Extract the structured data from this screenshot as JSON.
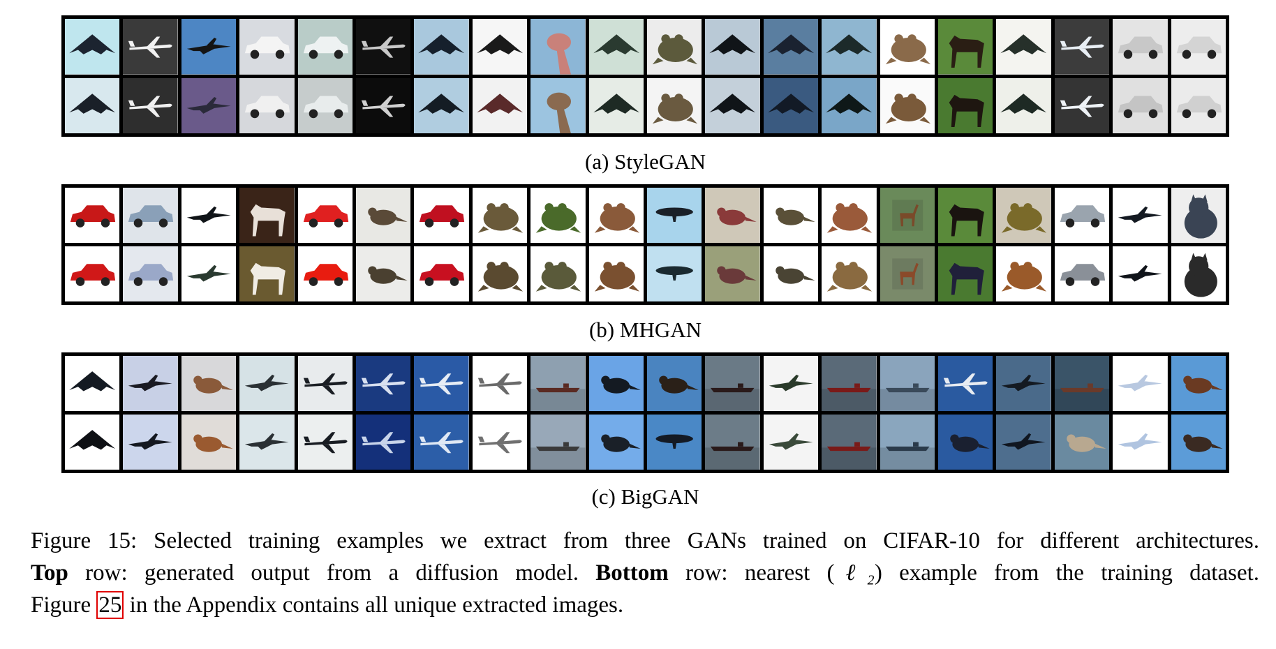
{
  "figure": {
    "panels": [
      {
        "id": "stylegan",
        "caption": "(a) StyleGAN",
        "top_row": [
          {
            "subject": "stealth-bomber",
            "bg": "#bfe6ee",
            "fg": "#1c2430"
          },
          {
            "subject": "airliner",
            "bg": "#3a3a3a",
            "fg": "#f2f2f2"
          },
          {
            "subject": "fighter-jet",
            "bg": "#4d86c4",
            "fg": "#151515"
          },
          {
            "subject": "car",
            "bg": "#d8dbe0",
            "fg": "#f4f4f4"
          },
          {
            "subject": "car",
            "bg": "#b9ccc8",
            "fg": "#eef2f2"
          },
          {
            "subject": "airliner",
            "bg": "#101010",
            "fg": "#c8c8c8"
          },
          {
            "subject": "stealth-bomber",
            "bg": "#a9c8dd",
            "fg": "#16202c"
          },
          {
            "subject": "stealth-bomber",
            "bg": "#f6f6f6",
            "fg": "#1a1a1a"
          },
          {
            "subject": "ostrich-head",
            "bg": "#8cb6d6",
            "fg": "#c9817a"
          },
          {
            "subject": "stealth-bomber",
            "bg": "#cfe0d6",
            "fg": "#2a3a30"
          },
          {
            "subject": "frog",
            "bg": "#ececec",
            "fg": "#5c5a3c"
          },
          {
            "subject": "stealth-bomber",
            "bg": "#b9c9d6",
            "fg": "#101418"
          },
          {
            "subject": "stealth-bomber",
            "bg": "#5a7ea0",
            "fg": "#1a2230"
          },
          {
            "subject": "stealth-bomber",
            "bg": "#8fb6d0",
            "fg": "#1c2a2a"
          },
          {
            "subject": "frog",
            "bg": "#ffffff",
            "fg": "#8a6a4a"
          },
          {
            "subject": "horse",
            "bg": "#5a8a3a",
            "fg": "#2a1e14"
          },
          {
            "subject": "stealth-bomber",
            "bg": "#f4f4f0",
            "fg": "#26302a"
          },
          {
            "subject": "airliner",
            "bg": "#3c3c3c",
            "fg": "#e8eef4"
          },
          {
            "subject": "car",
            "bg": "#e4e4e4",
            "fg": "#c8c8c8"
          },
          {
            "subject": "car",
            "bg": "#ededed",
            "fg": "#d4d4d4"
          }
        ],
        "bottom_row": [
          {
            "subject": "stealth-bomber",
            "bg": "#d8e8ee",
            "fg": "#1a2028"
          },
          {
            "subject": "airliner",
            "bg": "#2e2e2e",
            "fg": "#f0f0f0"
          },
          {
            "subject": "fighter-jet",
            "bg": "#6a5a8a",
            "fg": "#2a2a3a"
          },
          {
            "subject": "car",
            "bg": "#d6d8dc",
            "fg": "#f0f0f0"
          },
          {
            "subject": "car",
            "bg": "#c6cccc",
            "fg": "#e8ecec"
          },
          {
            "subject": "airliner",
            "bg": "#0c0c0c",
            "fg": "#d0d0d0"
          },
          {
            "subject": "stealth-bomber",
            "bg": "#b0cde0",
            "fg": "#141c24"
          },
          {
            "subject": "stealth-bomber",
            "bg": "#f2f2f2",
            "fg": "#5a2a2a"
          },
          {
            "subject": "ostrich-head",
            "bg": "#9cc4e0",
            "fg": "#8a6a50"
          },
          {
            "subject": "stealth-bomber",
            "bg": "#e6ece6",
            "fg": "#1e2a24"
          },
          {
            "subject": "frog",
            "bg": "#f4f4f4",
            "fg": "#6a5a40"
          },
          {
            "subject": "stealth-bomber",
            "bg": "#c4d0da",
            "fg": "#101418"
          },
          {
            "subject": "stealth-bomber",
            "bg": "#3a5a80",
            "fg": "#121a26"
          },
          {
            "subject": "stealth-bomber",
            "bg": "#7aa6c8",
            "fg": "#0e1818"
          },
          {
            "subject": "frog",
            "bg": "#fafafa",
            "fg": "#7a5a3a"
          },
          {
            "subject": "horse",
            "bg": "#4a7a30",
            "fg": "#1e1610"
          },
          {
            "subject": "stealth-bomber",
            "bg": "#eef0ea",
            "fg": "#1e2a24"
          },
          {
            "subject": "airliner",
            "bg": "#343434",
            "fg": "#eef2f6"
          },
          {
            "subject": "car",
            "bg": "#e0e0e0",
            "fg": "#c4c4c4"
          },
          {
            "subject": "car",
            "bg": "#ebebeb",
            "fg": "#d0d0d0"
          }
        ]
      },
      {
        "id": "mhgan",
        "caption": "(b) MHGAN",
        "top_row": [
          {
            "subject": "car",
            "bg": "#ffffff",
            "fg": "#c81818"
          },
          {
            "subject": "car",
            "bg": "#dfe4ea",
            "fg": "#8aa0b8"
          },
          {
            "subject": "fighter-jet",
            "bg": "#ffffff",
            "fg": "#101418"
          },
          {
            "subject": "horse",
            "bg": "#3a2418",
            "fg": "#e8e0d8"
          },
          {
            "subject": "car",
            "bg": "#ffffff",
            "fg": "#e02020"
          },
          {
            "subject": "bird",
            "bg": "#e8e8e4",
            "fg": "#5a4a38"
          },
          {
            "subject": "car",
            "bg": "#ffffff",
            "fg": "#c01020"
          },
          {
            "subject": "frog",
            "bg": "#ffffff",
            "fg": "#6a5a3a"
          },
          {
            "subject": "frog",
            "bg": "#ffffff",
            "fg": "#4a6a2a"
          },
          {
            "subject": "frog",
            "bg": "#ffffff",
            "fg": "#8a5a3a"
          },
          {
            "subject": "airship",
            "bg": "#a8d4ec",
            "fg": "#1a2028"
          },
          {
            "subject": "bird",
            "bg": "#cfc8b8",
            "fg": "#8a3a3a"
          },
          {
            "subject": "bird",
            "bg": "#ffffff",
            "fg": "#5a5038"
          },
          {
            "subject": "frog",
            "bg": "#ffffff",
            "fg": "#9a5a3a"
          },
          {
            "subject": "deer",
            "bg": "#6a8a5a",
            "fg": "#7a4a2a"
          },
          {
            "subject": "horse",
            "bg": "#5a8a3a",
            "fg": "#1a1410"
          },
          {
            "subject": "frog",
            "bg": "#cfc8b8",
            "fg": "#7a6a2a"
          },
          {
            "subject": "car",
            "bg": "#ffffff",
            "fg": "#9aa4ae"
          },
          {
            "subject": "fighter-jet",
            "bg": "#ffffff",
            "fg": "#141a22"
          },
          {
            "subject": "cat",
            "bg": "#eeeeee",
            "fg": "#3a4454"
          }
        ],
        "bottom_row": [
          {
            "subject": "car",
            "bg": "#ffffff",
            "fg": "#d01818"
          },
          {
            "subject": "car",
            "bg": "#e4e8ee",
            "fg": "#9aa8c8"
          },
          {
            "subject": "fighter-jet",
            "bg": "#ffffff",
            "fg": "#2a3a30"
          },
          {
            "subject": "horse",
            "bg": "#6a5a30",
            "fg": "#f0ece4"
          },
          {
            "subject": "car",
            "bg": "#ffffff",
            "fg": "#e81c10"
          },
          {
            "subject": "bird",
            "bg": "#ececea",
            "fg": "#4a4030"
          },
          {
            "subject": "car",
            "bg": "#ffffff",
            "fg": "#c81020"
          },
          {
            "subject": "frog",
            "bg": "#ffffff",
            "fg": "#5a4a30"
          },
          {
            "subject": "frog",
            "bg": "#ffffff",
            "fg": "#5a5a3a"
          },
          {
            "subject": "frog",
            "bg": "#ffffff",
            "fg": "#7a5030"
          },
          {
            "subject": "airship",
            "bg": "#c0e0f0",
            "fg": "#1a2a30"
          },
          {
            "subject": "bird",
            "bg": "#9aa07a",
            "fg": "#6a3a3a"
          },
          {
            "subject": "bird",
            "bg": "#ffffff",
            "fg": "#4a4434"
          },
          {
            "subject": "frog",
            "bg": "#ffffff",
            "fg": "#8a6a40"
          },
          {
            "subject": "deer",
            "bg": "#7a8a6a",
            "fg": "#8a4a2a"
          },
          {
            "subject": "horse",
            "bg": "#4a7a30",
            "fg": "#20203a"
          },
          {
            "subject": "frog",
            "bg": "#ffffff",
            "fg": "#9a5a2a"
          },
          {
            "subject": "car",
            "bg": "#ffffff",
            "fg": "#8a9098"
          },
          {
            "subject": "fighter-jet",
            "bg": "#ffffff",
            "fg": "#10141a"
          },
          {
            "subject": "cat",
            "bg": "#ffffff",
            "fg": "#2a2a2a"
          }
        ]
      },
      {
        "id": "biggan",
        "caption": "(c) BigGAN",
        "top_row": [
          {
            "subject": "stealth-bomber",
            "bg": "#ffffff",
            "fg": "#141a22"
          },
          {
            "subject": "fighter-jet",
            "bg": "#c8d0e6",
            "fg": "#1a1a22"
          },
          {
            "subject": "bird",
            "bg": "#d8d8da",
            "fg": "#8a5a3a"
          },
          {
            "subject": "fighter-jet",
            "bg": "#d6e2e6",
            "fg": "#2a3034"
          },
          {
            "subject": "airliner",
            "bg": "#e8ebed",
            "fg": "#1a1e24"
          },
          {
            "subject": "airliner",
            "bg": "#1a3a80",
            "fg": "#d8e0f0"
          },
          {
            "subject": "airliner",
            "bg": "#2a5aa6",
            "fg": "#e6ecf4"
          },
          {
            "subject": "airliner",
            "bg": "#ffffff",
            "fg": "#6a6a6a"
          },
          {
            "subject": "ship",
            "bg": "#8ea0b0",
            "fg": "#5a2a22"
          },
          {
            "subject": "bird",
            "bg": "#6aa4e6",
            "fg": "#141a22"
          },
          {
            "subject": "bird",
            "bg": "#4a84c0",
            "fg": "#2a2018"
          },
          {
            "subject": "ship",
            "bg": "#6a7a86",
            "fg": "#2a1a1a"
          },
          {
            "subject": "fighter-jet",
            "bg": "#f4f4f4",
            "fg": "#2a3a2a"
          },
          {
            "subject": "ship",
            "bg": "#5a6a78",
            "fg": "#7a1a18"
          },
          {
            "subject": "ship",
            "bg": "#8aa4bc",
            "fg": "#3a4a5a"
          },
          {
            "subject": "airliner",
            "bg": "#2a5aa0",
            "fg": "#e8ecf2"
          },
          {
            "subject": "fighter-jet",
            "bg": "#4a6a8a",
            "fg": "#141a22"
          },
          {
            "subject": "ship",
            "bg": "#3a5468",
            "fg": "#6a3a2a"
          },
          {
            "subject": "fighter-jet",
            "bg": "#ffffff",
            "fg": "#b8c8e0"
          },
          {
            "subject": "bird",
            "bg": "#5a9ad6",
            "fg": "#6a3a22"
          }
        ],
        "bottom_row": [
          {
            "subject": "stealth-bomber",
            "bg": "#ffffff",
            "fg": "#0e1014"
          },
          {
            "subject": "fighter-jet",
            "bg": "#ccd6ec",
            "fg": "#141820"
          },
          {
            "subject": "bird",
            "bg": "#e0dcd8",
            "fg": "#9a5a30"
          },
          {
            "subject": "fighter-jet",
            "bg": "#dbe6ea",
            "fg": "#2a3034"
          },
          {
            "subject": "airliner",
            "bg": "#ecefef",
            "fg": "#181c22"
          },
          {
            "subject": "airliner",
            "bg": "#14307a",
            "fg": "#c8d4ea"
          },
          {
            "subject": "airliner",
            "bg": "#2c5ea8",
            "fg": "#dfe8f4"
          },
          {
            "subject": "airliner",
            "bg": "#ffffff",
            "fg": "#707070"
          },
          {
            "subject": "ship",
            "bg": "#98a8b8",
            "fg": "#3a3a3a"
          },
          {
            "subject": "bird",
            "bg": "#74acea",
            "fg": "#1a2028"
          },
          {
            "subject": "airship",
            "bg": "#4a88c6",
            "fg": "#141a24"
          },
          {
            "subject": "ship",
            "bg": "#6c7c88",
            "fg": "#2a1a1a"
          },
          {
            "subject": "fighter-jet",
            "bg": "#f4f4f4",
            "fg": "#3a4a3a"
          },
          {
            "subject": "ship",
            "bg": "#5a6a78",
            "fg": "#7a1a18"
          },
          {
            "subject": "ship",
            "bg": "#8aa6be",
            "fg": "#2a3a4a"
          },
          {
            "subject": "bird",
            "bg": "#2a5aa0",
            "fg": "#1a2030"
          },
          {
            "subject": "fighter-jet",
            "bg": "#4e6e8e",
            "fg": "#101620"
          },
          {
            "subject": "bird",
            "bg": "#6a8aa0",
            "fg": "#b8a890"
          },
          {
            "subject": "fighter-jet",
            "bg": "#ffffff",
            "fg": "#b0c4e0"
          },
          {
            "subject": "bird",
            "bg": "#5c9cd8",
            "fg": "#3a2a22"
          }
        ]
      }
    ],
    "caption": {
      "line1": "Figure 15: Selected training examples we extract from three GANs trained on CIFAR-10 for different architectures.",
      "line2_top": "Top",
      "line2_a": " row: generated output from a diffusion model. ",
      "line2_bottom": "Bottom",
      "line2_b": " row: nearest (",
      "line2_math": "ℓ₂",
      "line2_c": ") example from the training dataset.",
      "line3_a": "Figure ",
      "line3_ref": "25",
      "line3_b": " in the Appendix contains all unique extracted images."
    }
  }
}
